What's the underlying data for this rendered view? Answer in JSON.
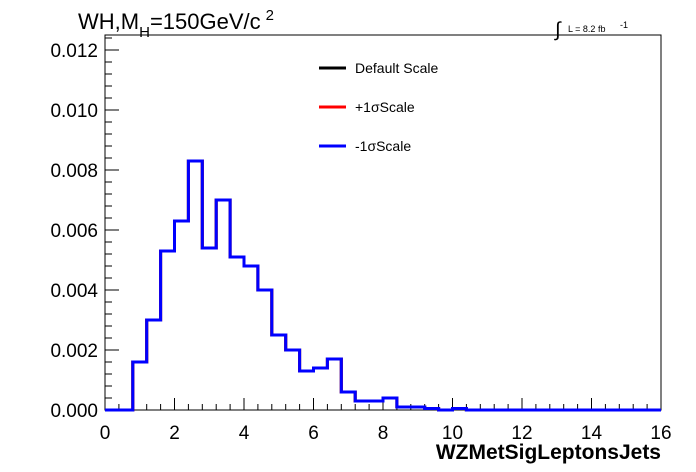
{
  "chart_data": {
    "type": "line",
    "step": true,
    "title_main": "WH,M",
    "title_sub": "H",
    "title_rest": "=150GeV/c",
    "title_sup": "2",
    "lumi_label": "L = 8.2 fb",
    "lumi_sup": "-1",
    "xlabel": "WZMetSigLeptonsJets",
    "ylabel": "",
    "xlim": [
      0,
      16
    ],
    "ylim": [
      0,
      0.0125
    ],
    "x_ticks": [
      "0",
      "2",
      "4",
      "6",
      "8",
      "10",
      "12",
      "14",
      "16"
    ],
    "y_ticks": [
      "0.000",
      "0.002",
      "0.004",
      "0.006",
      "0.008",
      "0.010",
      "0.012"
    ],
    "grid": false,
    "legend_position": "top-center",
    "bin_width": 0.4,
    "bin_edges_start": 0,
    "series": [
      {
        "name": "Default Scale",
        "color": "#000000",
        "values": [
          0,
          0,
          0.0016,
          0.003,
          0.0053,
          0.0063,
          0.0083,
          0.0054,
          0.007,
          0.0051,
          0.0048,
          0.004,
          0.0025,
          0.002,
          0.0013,
          0.0014,
          0.0017,
          0.0006,
          0.0003,
          0.0003,
          0.0004,
          0.0001,
          0.0001,
          5e-05,
          0,
          5e-05,
          0,
          0,
          0,
          0,
          0,
          0,
          0,
          0,
          0,
          0,
          0,
          0,
          0,
          0
        ]
      },
      {
        "name": "+1σScale",
        "color": "#ff0000",
        "values": [
          0,
          0,
          0.0016,
          0.003,
          0.0053,
          0.0063,
          0.0083,
          0.0054,
          0.007,
          0.0051,
          0.0048,
          0.004,
          0.0025,
          0.002,
          0.0013,
          0.0014,
          0.0017,
          0.0006,
          0.0003,
          0.0003,
          0.0004,
          0.0001,
          0.0001,
          5e-05,
          0,
          5e-05,
          0,
          0,
          0,
          0,
          0,
          0,
          0,
          0,
          0,
          0,
          0,
          0,
          0,
          0
        ]
      },
      {
        "name": "-1σScale",
        "color": "#0000ff",
        "values": [
          0,
          0,
          0.0016,
          0.003,
          0.0053,
          0.0063,
          0.0083,
          0.0054,
          0.007,
          0.0051,
          0.0048,
          0.004,
          0.0025,
          0.002,
          0.0013,
          0.0014,
          0.0017,
          0.0006,
          0.0003,
          0.0003,
          0.0004,
          0.0001,
          0.0001,
          5e-05,
          0,
          5e-05,
          0,
          0,
          0,
          0,
          0,
          0,
          0,
          0,
          0,
          0,
          0,
          0,
          0,
          0
        ]
      }
    ]
  }
}
